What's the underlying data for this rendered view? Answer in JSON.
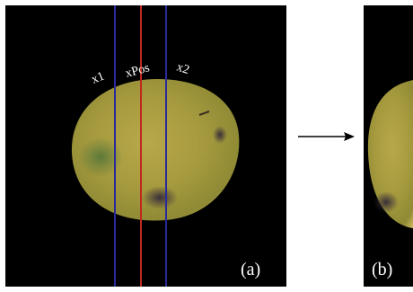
{
  "panels": [
    {
      "label": "(a)",
      "annotations": [
        "x1",
        "xPos",
        "x2"
      ]
    },
    {
      "label": "(b)"
    }
  ]
}
